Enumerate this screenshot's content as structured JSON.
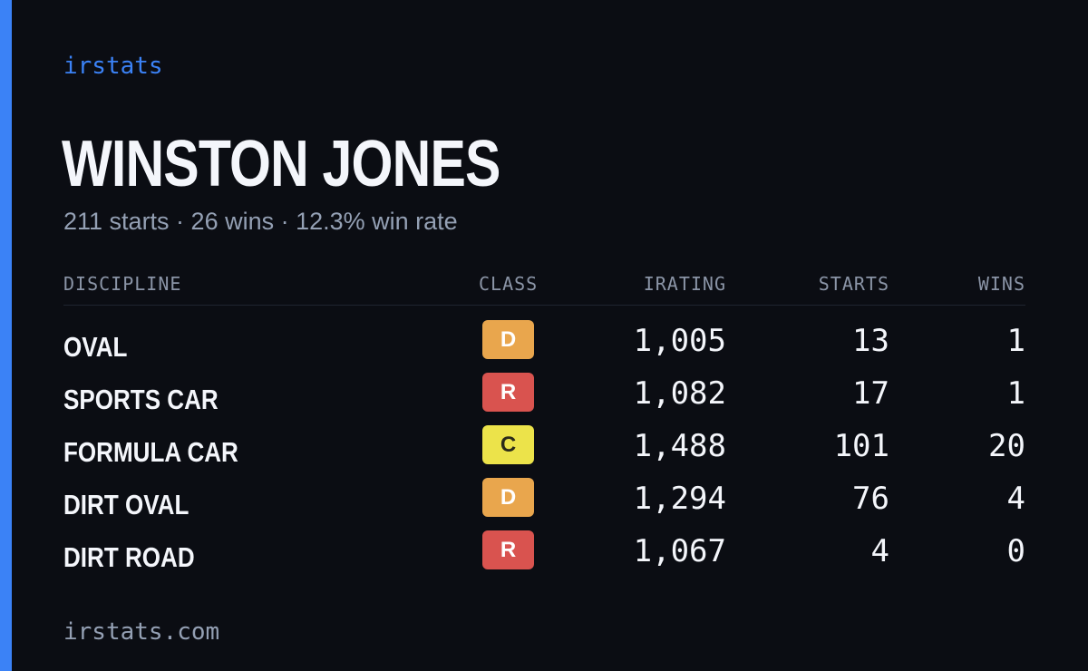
{
  "brand": "irstats",
  "driver": {
    "name": "WINSTON JONES",
    "summary": "211 starts · 26 wins · 12.3% win rate"
  },
  "table": {
    "headers": {
      "discipline": "DISCIPLINE",
      "class": "CLASS",
      "irating": "IRATING",
      "starts": "STARTS",
      "wins": "WINS"
    },
    "rows": [
      {
        "discipline": "OVAL",
        "class": "D",
        "class_color": "#e9a64d",
        "class_text_color": "#ffffff",
        "irating": "1,005",
        "starts": "13",
        "wins": "1"
      },
      {
        "discipline": "SPORTS CAR",
        "class": "R",
        "class_color": "#d9534f",
        "class_text_color": "#ffffff",
        "irating": "1,082",
        "starts": "17",
        "wins": "1"
      },
      {
        "discipline": "FORMULA CAR",
        "class": "C",
        "class_color": "#ece34a",
        "class_text_color": "#2a2a1a",
        "irating": "1,488",
        "starts": "101",
        "wins": "20"
      },
      {
        "discipline": "DIRT OVAL",
        "class": "D",
        "class_color": "#e9a64d",
        "class_text_color": "#ffffff",
        "irating": "1,294",
        "starts": "76",
        "wins": "4"
      },
      {
        "discipline": "DIRT ROAD",
        "class": "R",
        "class_color": "#d9534f",
        "class_text_color": "#ffffff",
        "irating": "1,067",
        "starts": "4",
        "wins": "0"
      }
    ]
  },
  "footer": {
    "domain": "irstats.com"
  },
  "colors": {
    "accent": "#3b82f6",
    "background": "#0b0d13"
  }
}
